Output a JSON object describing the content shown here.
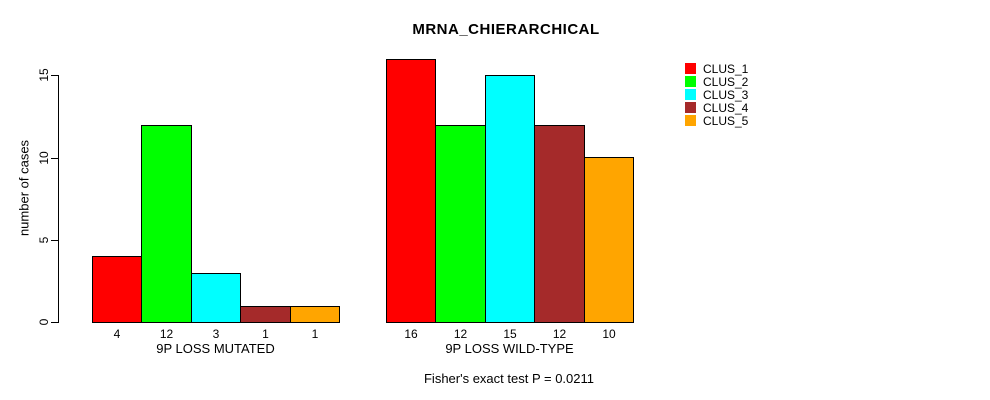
{
  "chart_data": {
    "type": "bar",
    "title": "MRNA_CHIERARCHICAL",
    "ylabel": "number of cases",
    "subtitle": "Fisher's exact test P = 0.0211",
    "yticks": [
      0,
      5,
      10,
      15
    ],
    "ylim": [
      0,
      16
    ],
    "grid": false,
    "legend_position": "right",
    "bar_labels_shown": true,
    "categories": [
      "9P LOSS MUTATED",
      "9P LOSS WILD-TYPE"
    ],
    "series": [
      {
        "name": "CLUS_1",
        "color": "#FF0000",
        "values": [
          4,
          16
        ]
      },
      {
        "name": "CLUS_2",
        "color": "#00FF00",
        "values": [
          12,
          12
        ]
      },
      {
        "name": "CLUS_3",
        "color": "#00FFFF",
        "values": [
          3,
          15
        ]
      },
      {
        "name": "CLUS_4",
        "color": "#A52A2A",
        "values": [
          1,
          12
        ]
      },
      {
        "name": "CLUS_5",
        "color": "#FFA500",
        "values": [
          1,
          10
        ]
      }
    ]
  }
}
